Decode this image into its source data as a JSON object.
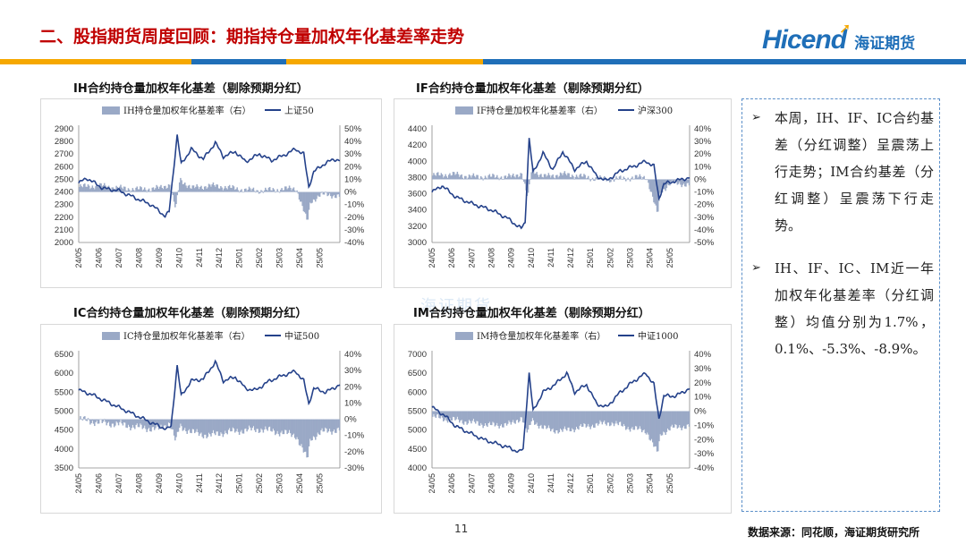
{
  "header": {
    "title": "二、股指期货周度回顾：期指持仓量加权年化基差率走势",
    "logo_text_en": "Hicend",
    "logo_text_cn": "海证期货"
  },
  "colors": {
    "title_red": "#c00000",
    "bar_blue": "#1f6fb8",
    "bar_orange": "#f6a800",
    "basis_bar": "#9aa9c6",
    "index_line": "#24418a",
    "note_border": "#5b8fc9"
  },
  "chart_data": [
    {
      "type": "bar+line",
      "title": "IH合约持仓量加权年化基差（剔除预期分红）",
      "legend": [
        "IH持仓量加权年化基差率（右）",
        "上证50"
      ],
      "y_left_ticks": [
        "2900",
        "2800",
        "2700",
        "2600",
        "2500",
        "2400",
        "2300",
        "2200",
        "2100",
        "2000"
      ],
      "y_left_range": [
        2000,
        2900
      ],
      "y_right_ticks": [
        "50%",
        "40%",
        "30%",
        "20%",
        "10%",
        "0%",
        "-10%",
        "-20%",
        "-30%",
        "-40%"
      ],
      "y_right_range": [
        -40,
        50
      ],
      "x_ticks": [
        "24/05",
        "24/06",
        "24/07",
        "24/08",
        "24/09",
        "24/10",
        "24/11",
        "24/12",
        "25/01",
        "25/02",
        "25/03",
        "25/04",
        "25/05"
      ],
      "line_keypoints": [
        [
          0,
          2470
        ],
        [
          0.4,
          2510
        ],
        [
          1.2,
          2430
        ],
        [
          2,
          2410
        ],
        [
          3,
          2340
        ],
        [
          3.6,
          2300
        ],
        [
          4.3,
          2210
        ],
        [
          4.5,
          2240
        ],
        [
          4.9,
          2850
        ],
        [
          5.1,
          2620
        ],
        [
          5.6,
          2740
        ],
        [
          6.2,
          2660
        ],
        [
          6.8,
          2790
        ],
        [
          7.2,
          2680
        ],
        [
          7.8,
          2720
        ],
        [
          8.3,
          2640
        ],
        [
          9,
          2700
        ],
        [
          9.6,
          2650
        ],
        [
          10.2,
          2690
        ],
        [
          10.8,
          2740
        ],
        [
          11.2,
          2700
        ],
        [
          11.45,
          2440
        ],
        [
          11.7,
          2560
        ],
        [
          12.2,
          2620
        ],
        [
          12.7,
          2660
        ],
        [
          13,
          2650
        ]
      ],
      "bar_keypoints": [
        [
          0,
          4
        ],
        [
          1,
          5
        ],
        [
          2,
          3
        ],
        [
          3,
          2
        ],
        [
          4,
          3
        ],
        [
          4.5,
          6
        ],
        [
          4.8,
          -14
        ],
        [
          5.0,
          10
        ],
        [
          5.6,
          3
        ],
        [
          6.5,
          5
        ],
        [
          7.2,
          4
        ],
        [
          8,
          2
        ],
        [
          9,
          1
        ],
        [
          10,
          2
        ],
        [
          10.8,
          3
        ],
        [
          11.35,
          -24
        ],
        [
          11.5,
          -8
        ],
        [
          12,
          -2
        ],
        [
          13,
          -3
        ]
      ]
    },
    {
      "type": "bar+line",
      "title": "IF合约持仓量加权年化基差（剔除预期分红）",
      "legend": [
        "IF持仓量加权年化基差率（右）",
        "沪深300"
      ],
      "y_left_ticks": [
        "4400",
        "4200",
        "4000",
        "3800",
        "3600",
        "3400",
        "3200",
        "3000"
      ],
      "y_left_range": [
        3000,
        4400
      ],
      "y_right_ticks": [
        "40%",
        "30%",
        "20%",
        "10%",
        "0%",
        "-10%",
        "-20%",
        "-30%",
        "-40%",
        "-50%"
      ],
      "y_right_range": [
        -50,
        40
      ],
      "x_ticks": [
        "24/05",
        "24/06",
        "24/07",
        "24/08",
        "24/09",
        "24/10",
        "24/11",
        "24/12",
        "25/01",
        "25/02",
        "25/03",
        "25/04",
        "25/05"
      ],
      "line_keypoints": [
        [
          0,
          3620
        ],
        [
          0.5,
          3700
        ],
        [
          1.2,
          3560
        ],
        [
          2,
          3480
        ],
        [
          3,
          3400
        ],
        [
          3.8,
          3300
        ],
        [
          4.5,
          3170
        ],
        [
          4.7,
          3250
        ],
        [
          4.9,
          4280
        ],
        [
          5.1,
          3860
        ],
        [
          5.6,
          4100
        ],
        [
          6.1,
          3900
        ],
        [
          6.6,
          4120
        ],
        [
          7.2,
          3900
        ],
        [
          7.8,
          4000
        ],
        [
          8.3,
          3820
        ],
        [
          8.8,
          3760
        ],
        [
          9.5,
          3880
        ],
        [
          10.2,
          3940
        ],
        [
          10.8,
          4000
        ],
        [
          11.2,
          3940
        ],
        [
          11.45,
          3540
        ],
        [
          11.7,
          3720
        ],
        [
          12.3,
          3760
        ],
        [
          13,
          3800
        ]
      ],
      "bar_keypoints": [
        [
          0,
          3
        ],
        [
          1,
          4
        ],
        [
          2,
          2
        ],
        [
          3,
          2
        ],
        [
          4,
          2
        ],
        [
          4.5,
          5
        ],
        [
          4.8,
          -15
        ],
        [
          5.0,
          8
        ],
        [
          5.6,
          2
        ],
        [
          6.5,
          4
        ],
        [
          7.2,
          3
        ],
        [
          8,
          1
        ],
        [
          9,
          0
        ],
        [
          10,
          1
        ],
        [
          10.8,
          2
        ],
        [
          11.35,
          -28
        ],
        [
          11.5,
          -10
        ],
        [
          12,
          -3
        ],
        [
          13,
          -4
        ]
      ]
    },
    {
      "type": "bar+line",
      "title": "IC合约持仓量加权年化基差（剔除预期分红）",
      "legend": [
        "IC持仓量加权年化基差率（右）",
        "中证500"
      ],
      "y_left_ticks": [
        "6500",
        "6000",
        "5500",
        "5000",
        "4500",
        "4000",
        "3500"
      ],
      "y_left_range": [
        3500,
        6500
      ],
      "y_right_ticks": [
        "40%",
        "30%",
        "20%",
        "10%",
        "0%",
        "-10%",
        "-20%",
        "-30%"
      ],
      "y_right_range": [
        -30,
        40
      ],
      "x_ticks": [
        "24/05",
        "24/06",
        "24/07",
        "24/08",
        "24/09",
        "24/10",
        "24/11",
        "24/12",
        "25/01",
        "25/02",
        "25/03",
        "25/04",
        "25/05"
      ],
      "line_keypoints": [
        [
          0,
          5550
        ],
        [
          0.6,
          5450
        ],
        [
          1.2,
          5300
        ],
        [
          2,
          5100
        ],
        [
          2.6,
          4950
        ],
        [
          3.2,
          4800
        ],
        [
          3.8,
          4650
        ],
        [
          4.4,
          4520
        ],
        [
          4.6,
          4600
        ],
        [
          4.9,
          6200
        ],
        [
          5.1,
          5400
        ],
        [
          5.6,
          5800
        ],
        [
          6.2,
          5850
        ],
        [
          6.8,
          6300
        ],
        [
          7.2,
          5800
        ],
        [
          7.8,
          5900
        ],
        [
          8.3,
          5600
        ],
        [
          8.8,
          5550
        ],
        [
          9.5,
          5800
        ],
        [
          10.2,
          5950
        ],
        [
          10.8,
          6050
        ],
        [
          11.2,
          5800
        ],
        [
          11.45,
          5200
        ],
        [
          11.7,
          5600
        ],
        [
          12.3,
          5500
        ],
        [
          13,
          5700
        ]
      ],
      "bar_keypoints": [
        [
          0,
          0
        ],
        [
          1,
          -2
        ],
        [
          2,
          -3
        ],
        [
          3,
          -5
        ],
        [
          4,
          -6
        ],
        [
          4.5,
          -2
        ],
        [
          4.8,
          -14
        ],
        [
          5.0,
          -4
        ],
        [
          5.6,
          -8
        ],
        [
          6.5,
          -10
        ],
        [
          7.2,
          -8
        ],
        [
          8,
          -7
        ],
        [
          9,
          -6
        ],
        [
          10,
          -8
        ],
        [
          10.8,
          -10
        ],
        [
          11.35,
          -25
        ],
        [
          11.5,
          -12
        ],
        [
          12,
          -8
        ],
        [
          13,
          -6
        ]
      ]
    },
    {
      "type": "bar+line",
      "title": "IM合约持仓量加权年化基差（剔除预期分红）",
      "legend": [
        "IM持仓量加权年化基差率（右）",
        "中证1000"
      ],
      "y_left_ticks": [
        "7000",
        "6500",
        "6000",
        "5500",
        "5000",
        "4500",
        "4000"
      ],
      "y_left_range": [
        4000,
        7000
      ],
      "y_right_ticks": [
        "40%",
        "30%",
        "20%",
        "10%",
        "0%",
        "-10%",
        "-20%",
        "-30%",
        "-40%"
      ],
      "y_right_range": [
        -40,
        40
      ],
      "x_ticks": [
        "24/05",
        "24/06",
        "24/07",
        "24/08",
        "24/09",
        "24/10",
        "24/11",
        "24/12",
        "25/01",
        "25/02",
        "25/03",
        "25/04",
        "25/05"
      ],
      "line_keypoints": [
        [
          0,
          5600
        ],
        [
          0.6,
          5400
        ],
        [
          1.2,
          5100
        ],
        [
          2,
          4900
        ],
        [
          2.6,
          4750
        ],
        [
          3.2,
          4650
        ],
        [
          3.8,
          4550
        ],
        [
          4.4,
          4420
        ],
        [
          4.6,
          4500
        ],
        [
          4.9,
          6500
        ],
        [
          5.1,
          5500
        ],
        [
          5.6,
          6000
        ],
        [
          6.2,
          6200
        ],
        [
          6.8,
          6500
        ],
        [
          7.2,
          6000
        ],
        [
          7.8,
          6200
        ],
        [
          8.3,
          5700
        ],
        [
          8.8,
          5600
        ],
        [
          9.5,
          6000
        ],
        [
          10.2,
          6300
        ],
        [
          10.8,
          6500
        ],
        [
          11.2,
          6200
        ],
        [
          11.45,
          5300
        ],
        [
          11.7,
          5900
        ],
        [
          12.3,
          5900
        ],
        [
          13,
          6100
        ]
      ],
      "bar_keypoints": [
        [
          0,
          -4
        ],
        [
          1,
          -6
        ],
        [
          2,
          -8
        ],
        [
          3,
          -10
        ],
        [
          4,
          -9
        ],
        [
          4.5,
          -4
        ],
        [
          4.8,
          -16
        ],
        [
          5.0,
          -6
        ],
        [
          5.6,
          -12
        ],
        [
          6.5,
          -14
        ],
        [
          7.2,
          -12
        ],
        [
          8,
          -10
        ],
        [
          9,
          -8
        ],
        [
          10,
          -12
        ],
        [
          10.8,
          -14
        ],
        [
          11.35,
          -30
        ],
        [
          11.5,
          -16
        ],
        [
          12,
          -12
        ],
        [
          13,
          -10
        ]
      ]
    }
  ],
  "notes": [
    "本周，IH、IF、IC合约基差（分红调整）呈震荡上行走势；IM合约基差（分红调整）呈震荡下行走势。",
    "IH、IF、IC、IM近一年加权年化基差率（分红调整）均值分别为1.7%，0.1%、-5.3%、-8.9%。"
  ],
  "note_bullet": "➢",
  "page_number": "11",
  "source": "数据来源：同花顺，海证期货研究所",
  "watermark": "海证期货"
}
